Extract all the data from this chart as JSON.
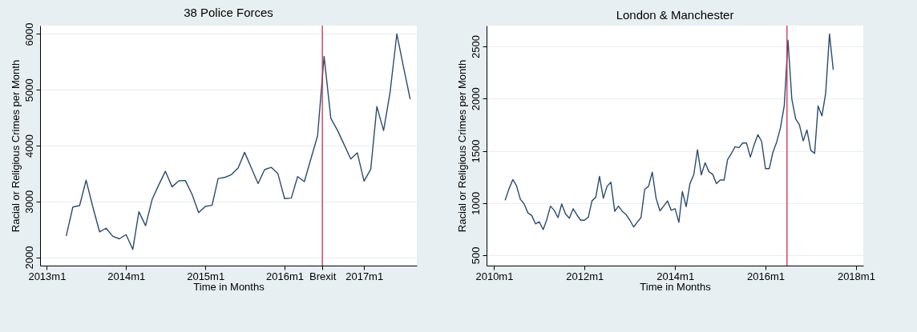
{
  "chart_data": [
    {
      "type": "line",
      "title": "38 Police Forces",
      "xlabel": "Time in Months",
      "ylabel": "Racial or Religious Crimes per Month",
      "x": [
        "2013-04",
        "2013-05",
        "2013-06",
        "2013-07",
        "2013-08",
        "2013-09",
        "2013-10",
        "2013-11",
        "2013-12",
        "2014-01",
        "2014-02",
        "2014-03",
        "2014-04",
        "2014-05",
        "2014-06",
        "2014-07",
        "2014-08",
        "2014-09",
        "2014-10",
        "2014-11",
        "2014-12",
        "2015-01",
        "2015-02",
        "2015-03",
        "2015-04",
        "2015-05",
        "2015-06",
        "2015-07",
        "2015-08",
        "2015-09",
        "2015-10",
        "2015-11",
        "2015-12",
        "2016-01",
        "2016-02",
        "2016-03",
        "2016-04",
        "2016-05",
        "2016-06",
        "2016-07",
        "2016-08",
        "2016-09",
        "2016-10",
        "2016-11",
        "2016-12",
        "2017-01",
        "2017-02",
        "2017-03",
        "2017-04",
        "2017-05",
        "2017-06",
        "2017-07",
        "2017-08"
      ],
      "series": [
        {
          "color": "#2b4b6f",
          "values": [
            2390,
            2900,
            2925,
            3380,
            2900,
            2455,
            2520,
            2375,
            2330,
            2405,
            2140,
            2815,
            2565,
            3035,
            3300,
            3540,
            3260,
            3370,
            3375,
            3125,
            2800,
            2910,
            2930,
            3410,
            3430,
            3480,
            3600,
            3880,
            3600,
            3320,
            3570,
            3610,
            3500,
            3050,
            3060,
            3445,
            3355,
            3760,
            4175,
            5600,
            4490,
            4270,
            4020,
            3760,
            3870,
            3365,
            3580,
            4700,
            4270,
            4960,
            6000,
            5420,
            4840
          ]
        }
      ],
      "xlim": [
        "2012-12",
        "2017-09"
      ],
      "xticks": [
        {
          "value": "2013-01",
          "label": "2013m1"
        },
        {
          "value": "2014-01",
          "label": "2014m1"
        },
        {
          "value": "2015-01",
          "label": "2015m1"
        },
        {
          "value": "2016-01",
          "label": "2016m1"
        },
        {
          "value": "2016-06-23",
          "label": "Brexit"
        },
        {
          "value": "2017-01",
          "label": "2017m1"
        }
      ],
      "ylim": [
        1850,
        6150
      ],
      "yticks": [
        2000,
        3000,
        4000,
        5000,
        6000
      ],
      "grid": "y",
      "ref_lines": [
        {
          "axis": "x",
          "value": "2016-06-23",
          "color": "#c8304f"
        }
      ]
    },
    {
      "type": "line",
      "title": "London & Manchester",
      "xlabel": "Time in Months",
      "ylabel": "Racial or Religious Crimes per Month",
      "x": [
        "2010-04",
        "2010-05",
        "2010-06",
        "2010-07",
        "2010-08",
        "2010-09",
        "2010-10",
        "2010-11",
        "2010-12",
        "2011-01",
        "2011-02",
        "2011-03",
        "2011-04",
        "2011-05",
        "2011-06",
        "2011-07",
        "2011-08",
        "2011-09",
        "2011-10",
        "2011-11",
        "2011-12",
        "2012-01",
        "2012-02",
        "2012-03",
        "2012-04",
        "2012-05",
        "2012-06",
        "2012-07",
        "2012-08",
        "2012-09",
        "2012-10",
        "2012-11",
        "2012-12",
        "2013-01",
        "2013-02",
        "2013-03",
        "2013-04",
        "2013-05",
        "2013-06",
        "2013-07",
        "2013-08",
        "2013-09",
        "2013-10",
        "2013-11",
        "2013-12",
        "2014-01",
        "2014-02",
        "2014-03",
        "2014-04",
        "2014-05",
        "2014-06",
        "2014-07",
        "2014-08",
        "2014-09",
        "2014-10",
        "2014-11",
        "2014-12",
        "2015-01",
        "2015-02",
        "2015-03",
        "2015-04",
        "2015-05",
        "2015-06",
        "2015-07",
        "2015-08",
        "2015-09",
        "2015-10",
        "2015-11",
        "2015-12",
        "2016-01",
        "2016-02",
        "2016-03",
        "2016-04",
        "2016-05",
        "2016-06",
        "2016-07",
        "2016-08",
        "2016-09",
        "2016-10",
        "2016-11",
        "2016-12",
        "2017-01",
        "2017-02",
        "2017-03",
        "2017-04",
        "2017-05",
        "2017-06",
        "2017-07"
      ],
      "series": [
        {
          "color": "#2b4b6f",
          "values": [
            1030,
            1135,
            1225,
            1165,
            1035,
            990,
            905,
            880,
            800,
            820,
            745,
            835,
            970,
            930,
            860,
            990,
            895,
            855,
            945,
            885,
            835,
            835,
            865,
            1020,
            1055,
            1255,
            1045,
            1160,
            1200,
            920,
            970,
            920,
            890,
            835,
            770,
            815,
            860,
            1130,
            1160,
            1295,
            1045,
            925,
            970,
            1020,
            930,
            945,
            815,
            1110,
            965,
            1185,
            1270,
            1510,
            1270,
            1385,
            1300,
            1275,
            1185,
            1220,
            1220,
            1415,
            1475,
            1540,
            1530,
            1575,
            1575,
            1440,
            1555,
            1655,
            1590,
            1330,
            1330,
            1485,
            1585,
            1720,
            1935,
            2560,
            1995,
            1805,
            1750,
            1595,
            1700,
            1505,
            1475,
            1930,
            1835,
            2050,
            2620,
            2280
          ]
        }
      ],
      "xlim": [
        "2009-11",
        "2018-03"
      ],
      "xticks": [
        {
          "value": "2010-01",
          "label": "2010m1"
        },
        {
          "value": "2012-01",
          "label": "2012m1"
        },
        {
          "value": "2014-01",
          "label": "2014m1"
        },
        {
          "value": "2016-01",
          "label": "2016m1"
        },
        {
          "value": "2018-01",
          "label": "2018m1"
        }
      ],
      "ylim": [
        400,
        2700
      ],
      "yticks": [
        500,
        1000,
        1500,
        2000,
        2500
      ],
      "grid": "y",
      "ref_lines": [
        {
          "axis": "x",
          "value": "2016-06-23",
          "color": "#c8304f"
        }
      ]
    }
  ]
}
